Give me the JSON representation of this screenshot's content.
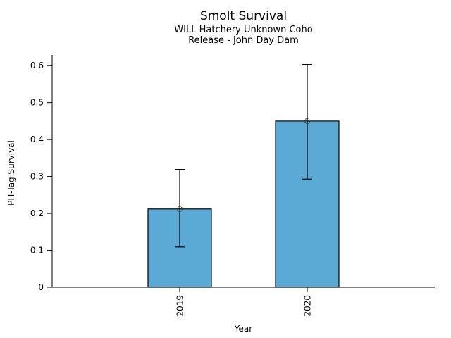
{
  "chart_data": {
    "type": "bar",
    "title": "Smolt Survival",
    "subtitle_lines": [
      "WILL Hatchery Unknown Coho",
      "Release - John Day Dam"
    ],
    "xlabel": "Year",
    "ylabel": "PIT-Tag Survival",
    "categories": [
      "2019",
      "2020"
    ],
    "series": [
      {
        "name": "PIT-Tag Survival",
        "values": [
          0.212,
          0.45
        ],
        "error_low": [
          0.109,
          0.293
        ],
        "error_high": [
          0.319,
          0.603
        ]
      }
    ],
    "yticks": [
      0,
      0.1,
      0.2,
      0.3,
      0.4,
      0.5,
      0.6
    ],
    "ytick_labels": [
      "0",
      "0.1",
      "0.2",
      "0.3",
      "0.4",
      "0.5",
      "0.6"
    ],
    "ylim": [
      0,
      0.629
    ],
    "grid": false,
    "legend_position": "none",
    "marker": "open-circle",
    "colors": {
      "background": "#ffffff",
      "bar_fill": "#5BAAD5",
      "bar_edge": "#000000",
      "error_bar": "#000000",
      "marker_edge": "#2b2b2b",
      "axis": "#000000",
      "text": "#000000"
    }
  }
}
